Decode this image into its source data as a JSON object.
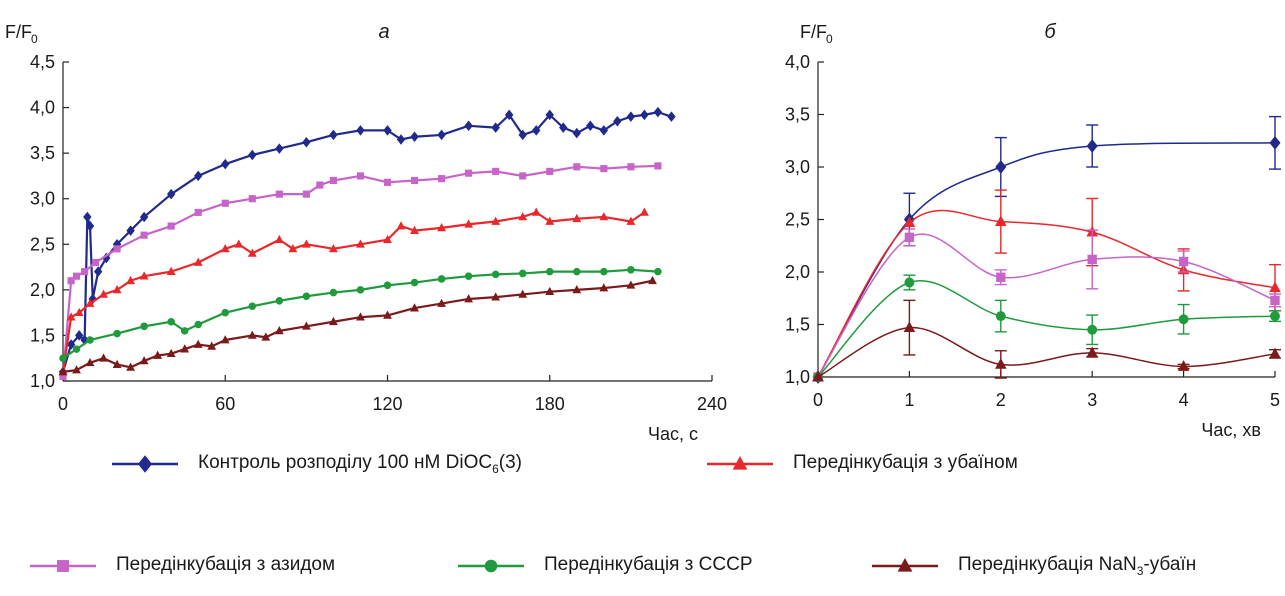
{
  "chart_data": [
    {
      "type": "line",
      "panel_label": "а",
      "ylabel_main": "F/F",
      "ylabel_sub": "0",
      "xlabel": "Час, с",
      "xlim": [
        0,
        240
      ],
      "ylim": [
        1.0,
        4.5
      ],
      "xticks": [
        "0",
        "60",
        "120",
        "180",
        "240"
      ],
      "yticks": [
        "1,0",
        "1,5",
        "2,0",
        "2,5",
        "3,0",
        "3,5",
        "4,0",
        "4,5"
      ],
      "series": [
        {
          "key": "control",
          "color": "#1f2a8c",
          "marker": "diamond",
          "x": [
            0,
            3,
            6,
            8,
            9,
            10,
            11,
            13,
            16,
            20,
            25,
            30,
            40,
            50,
            60,
            70,
            80,
            90,
            100,
            110,
            120,
            125,
            130,
            140,
            150,
            160,
            165,
            170,
            175,
            180,
            185,
            190,
            195,
            200,
            205,
            210,
            215,
            220,
            225
          ],
          "y": [
            1.1,
            1.4,
            1.5,
            1.45,
            2.8,
            2.7,
            1.9,
            2.2,
            2.35,
            2.5,
            2.65,
            2.8,
            3.05,
            3.25,
            3.38,
            3.48,
            3.55,
            3.62,
            3.7,
            3.75,
            3.75,
            3.65,
            3.68,
            3.7,
            3.8,
            3.78,
            3.92,
            3.7,
            3.75,
            3.92,
            3.78,
            3.72,
            3.8,
            3.75,
            3.85,
            3.9,
            3.92,
            3.95,
            3.9
          ]
        },
        {
          "key": "azide",
          "color": "#c764c7",
          "marker": "square",
          "x": [
            0,
            3,
            5,
            8,
            12,
            20,
            30,
            40,
            50,
            60,
            70,
            80,
            90,
            95,
            100,
            110,
            120,
            130,
            140,
            150,
            160,
            170,
            180,
            190,
            200,
            210,
            220
          ],
          "y": [
            1.05,
            2.1,
            2.15,
            2.2,
            2.3,
            2.45,
            2.6,
            2.7,
            2.85,
            2.95,
            3.0,
            3.05,
            3.05,
            3.15,
            3.2,
            3.25,
            3.18,
            3.2,
            3.22,
            3.28,
            3.3,
            3.25,
            3.3,
            3.35,
            3.33,
            3.35,
            3.36
          ]
        },
        {
          "key": "ouabain",
          "color": "#e8282b",
          "marker": "triangle",
          "x": [
            0,
            3,
            6,
            10,
            15,
            20,
            25,
            30,
            40,
            50,
            60,
            65,
            70,
            80,
            85,
            90,
            100,
            110,
            120,
            125,
            130,
            140,
            150,
            160,
            170,
            175,
            180,
            190,
            200,
            210,
            215
          ],
          "y": [
            1.1,
            1.7,
            1.75,
            1.85,
            1.95,
            2.0,
            2.1,
            2.15,
            2.2,
            2.3,
            2.45,
            2.5,
            2.4,
            2.55,
            2.45,
            2.5,
            2.45,
            2.5,
            2.55,
            2.7,
            2.65,
            2.68,
            2.72,
            2.75,
            2.8,
            2.85,
            2.75,
            2.78,
            2.8,
            2.75,
            2.85
          ]
        },
        {
          "key": "cccp",
          "color": "#1f9a3c",
          "marker": "circle",
          "x": [
            0,
            5,
            10,
            20,
            30,
            40,
            45,
            50,
            60,
            70,
            80,
            90,
            100,
            110,
            120,
            130,
            140,
            150,
            160,
            170,
            180,
            190,
            200,
            210,
            220
          ],
          "y": [
            1.25,
            1.35,
            1.45,
            1.52,
            1.6,
            1.65,
            1.55,
            1.62,
            1.75,
            1.82,
            1.88,
            1.93,
            1.97,
            2.0,
            2.05,
            2.08,
            2.12,
            2.15,
            2.17,
            2.18,
            2.2,
            2.2,
            2.2,
            2.22,
            2.2
          ]
        },
        {
          "key": "nan3_ouabain",
          "color": "#7a1a1a",
          "marker": "triangle",
          "x": [
            0,
            5,
            10,
            15,
            20,
            25,
            30,
            35,
            40,
            45,
            50,
            55,
            60,
            70,
            75,
            80,
            90,
            100,
            110,
            120,
            130,
            140,
            150,
            160,
            170,
            180,
            190,
            200,
            210,
            218
          ],
          "y": [
            1.1,
            1.12,
            1.2,
            1.25,
            1.18,
            1.15,
            1.22,
            1.28,
            1.3,
            1.35,
            1.4,
            1.38,
            1.45,
            1.5,
            1.48,
            1.55,
            1.6,
            1.65,
            1.7,
            1.72,
            1.8,
            1.85,
            1.9,
            1.92,
            1.95,
            1.98,
            2.0,
            2.02,
            2.05,
            2.1
          ]
        }
      ]
    },
    {
      "type": "line",
      "panel_label": "б",
      "ylabel_main": "F/F",
      "ylabel_sub": "0",
      "xlabel": "Час, хв",
      "xlim": [
        0,
        5
      ],
      "ylim": [
        1.0,
        4.0
      ],
      "xticks": [
        "0",
        "1",
        "2",
        "3",
        "4",
        "5"
      ],
      "yticks": [
        "1,0",
        "1,5",
        "2,0",
        "2,5",
        "3,0",
        "3,5",
        "4,0"
      ],
      "series": [
        {
          "key": "control",
          "color": "#1f2a8c",
          "marker": "diamond",
          "x": [
            0,
            1,
            2,
            3,
            5
          ],
          "y": [
            1.0,
            2.5,
            3.0,
            3.2,
            3.23
          ],
          "err": [
            0,
            0.25,
            0.28,
            0.2,
            0.25
          ]
        },
        {
          "key": "ouabain",
          "color": "#e8282b",
          "marker": "triangle",
          "x": [
            0,
            1,
            2,
            3,
            4,
            5
          ],
          "y": [
            1.0,
            2.47,
            2.48,
            2.38,
            2.02,
            1.85
          ],
          "err": [
            0,
            0,
            0.3,
            0.32,
            0.2,
            0.22
          ]
        },
        {
          "key": "azide",
          "color": "#c764c7",
          "marker": "square",
          "x": [
            0,
            1,
            2,
            3,
            4,
            5
          ],
          "y": [
            1.0,
            2.33,
            1.95,
            2.12,
            2.1,
            1.73
          ],
          "err": [
            0,
            0.08,
            0.07,
            0.28,
            0.1,
            0.06
          ]
        },
        {
          "key": "cccp",
          "color": "#1f9a3c",
          "marker": "circle",
          "x": [
            0,
            1,
            2,
            3,
            4,
            5
          ],
          "y": [
            1.0,
            1.9,
            1.58,
            1.45,
            1.55,
            1.58
          ],
          "err": [
            0,
            0.07,
            0.15,
            0.14,
            0.14,
            0.05
          ]
        },
        {
          "key": "nan3_ouabain",
          "color": "#7a1a1a",
          "marker": "triangle",
          "x": [
            0,
            1,
            2,
            3,
            4,
            5
          ],
          "y": [
            1.0,
            1.47,
            1.12,
            1.23,
            1.1,
            1.22
          ],
          "err": [
            0,
            0.26,
            0.13,
            0.04,
            0.02,
            0.04
          ]
        }
      ]
    }
  ],
  "legend": {
    "items": [
      {
        "key": "control",
        "color": "#1f2a8c",
        "marker": "diamond",
        "label_pre": "Контроль розподілу 100 нМ DiOC",
        "label_sub": "6",
        "label_post": "(3)"
      },
      {
        "key": "ouabain",
        "color": "#e8282b",
        "marker": "triangle",
        "label_pre": "Передінкубація з убаїном",
        "label_sub": "",
        "label_post": ""
      },
      {
        "key": "azide",
        "color": "#c764c7",
        "marker": "square",
        "label_pre": "Передінкубація з азидом",
        "label_sub": "",
        "label_post": ""
      },
      {
        "key": "cccp",
        "color": "#1f9a3c",
        "marker": "circle",
        "label_pre": "Передінкубація з СССР",
        "label_sub": "",
        "label_post": ""
      },
      {
        "key": "nan3_ouabain",
        "color": "#7a1a1a",
        "marker": "triangle",
        "label_pre": "Передінкубація NaN",
        "label_sub": "3",
        "label_post": "-убаїн"
      }
    ]
  }
}
